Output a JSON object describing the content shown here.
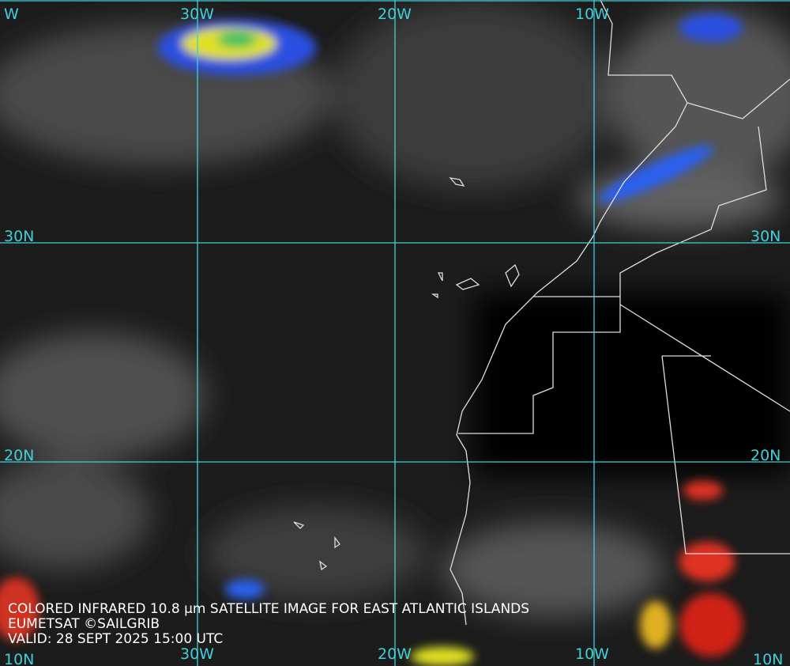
{
  "map": {
    "top_labels": [
      "W",
      "30W",
      "20W",
      "10W"
    ],
    "bottom_labels": [
      "10N",
      "30W",
      "20W",
      "10W",
      "10N"
    ],
    "left_labels": [
      "30N",
      "20N"
    ],
    "right_labels": [
      "30N",
      "20N"
    ],
    "caption": [
      "COLORED INFRARED 10.8 µm SATELLITE IMAGE FOR EAST ATLANTIC ISLANDS",
      "EUMETSAT ©SAILGRIB",
      "VALID:  28 SEPT 2025 15:00 UTC"
    ]
  }
}
